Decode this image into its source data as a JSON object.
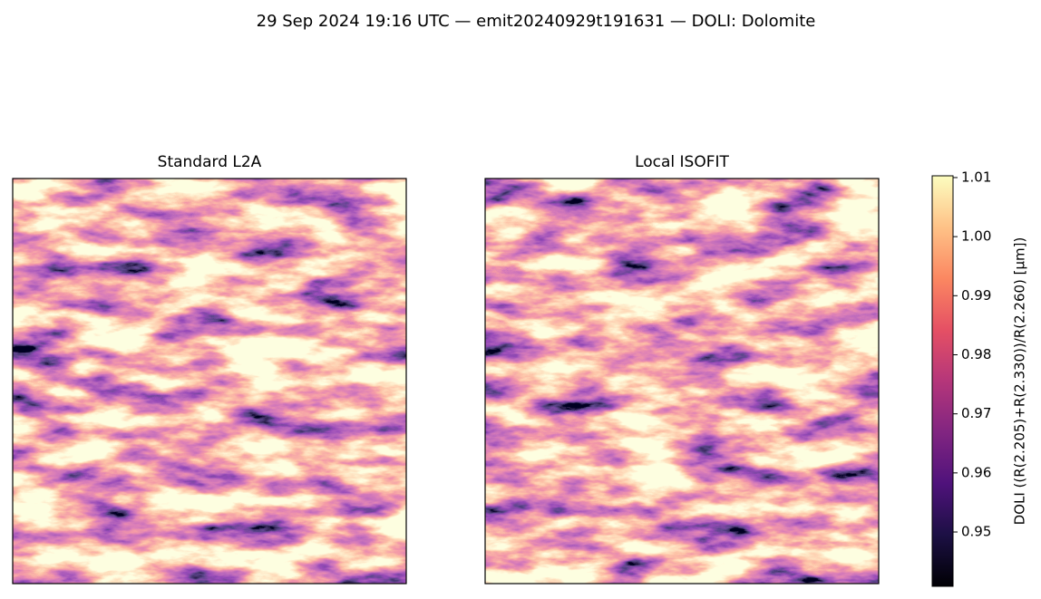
{
  "chart_data": {
    "type": "image",
    "title": "29 Sep 2024 19:16 UTC — emit20240929t191631 — DOLI: Dolomite",
    "panels": [
      {
        "title": "Standard L2A"
      },
      {
        "title": "Local ISOFIT"
      }
    ],
    "colorbar": {
      "label": "DOLI  ((R(2.205)+R(2.330))/R(2.260)  [µm])",
      "colormap": "magma",
      "lim": [
        0.9408,
        1.0103
      ],
      "ticks": [
        0.95,
        0.96,
        0.97,
        0.98,
        0.99,
        {
          "value": 1,
          "label": "1.00"
        },
        1.01
      ]
    }
  }
}
